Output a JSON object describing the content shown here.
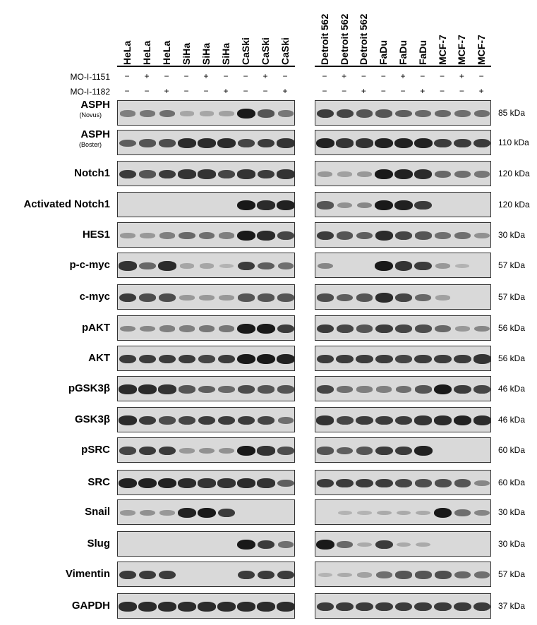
{
  "left_lanes": [
    "HeLa",
    "HeLa",
    "HeLa",
    "SiHa",
    "SiHa",
    "SiHa",
    "CaSki",
    "CaSki",
    "CaSki"
  ],
  "right_lanes": [
    "Detroit 562",
    "Detroit 562",
    "Detroit 562",
    "FaDu",
    "FaDu",
    "FaDu",
    "MCF-7",
    "MCF-7",
    "MCF-7"
  ],
  "treatments": [
    {
      "label": "MO-I-1151",
      "pattern": [
        "−",
        "+",
        "−",
        "−",
        "+",
        "−",
        "−",
        "+",
        "−"
      ]
    },
    {
      "label": "MO-I-1182",
      "pattern": [
        "−",
        "−",
        "+",
        "−",
        "−",
        "+",
        "−",
        "−",
        "+"
      ]
    }
  ],
  "rows": [
    {
      "label": "ASPH",
      "sub": "(Novus)",
      "kda": "85 kDa",
      "left": [
        0.35,
        0.4,
        0.45,
        0.12,
        0.12,
        0.15,
        0.95,
        0.6,
        0.4
      ],
      "right": [
        0.75,
        0.7,
        0.6,
        0.6,
        0.55,
        0.5,
        0.5,
        0.45,
        0.45
      ]
    },
    {
      "label": "ASPH",
      "sub": "(Boster)",
      "kda": "110 kDa",
      "left": [
        0.55,
        0.6,
        0.65,
        0.85,
        0.85,
        0.85,
        0.7,
        0.75,
        0.8
      ],
      "right": [
        0.9,
        0.8,
        0.8,
        0.9,
        0.9,
        0.9,
        0.75,
        0.75,
        0.75
      ]
    },
    {
      "label": "Notch1",
      "sub": "",
      "kda": "120 kDa",
      "left": [
        0.75,
        0.6,
        0.75,
        0.8,
        0.8,
        0.7,
        0.8,
        0.75,
        0.8
      ],
      "right": [
        0.2,
        0.15,
        0.2,
        0.95,
        0.9,
        0.85,
        0.5,
        0.45,
        0.4
      ]
    },
    {
      "label": "Activated Notch1",
      "sub": "",
      "kda": "120 kDa",
      "left": [
        0,
        0,
        0,
        0,
        0,
        0,
        0.95,
        0.85,
        0.9
      ],
      "right": [
        0.6,
        0.25,
        0.3,
        0.95,
        0.9,
        0.75,
        0,
        0,
        0
      ]
    },
    {
      "label": "HES1",
      "sub": "",
      "kda": "30 kDa",
      "left": [
        0.2,
        0.2,
        0.35,
        0.5,
        0.45,
        0.35,
        0.95,
        0.85,
        0.7
      ],
      "right": [
        0.75,
        0.6,
        0.55,
        0.85,
        0.7,
        0.6,
        0.45,
        0.45,
        0.25
      ]
    },
    {
      "label": "p-c-myc",
      "sub": "",
      "kda": "57 kDa",
      "left": [
        0.8,
        0.5,
        0.85,
        0.12,
        0.12,
        0.05,
        0.75,
        0.55,
        0.45
      ],
      "right": [
        0.3,
        0,
        0,
        0.95,
        0.8,
        0.75,
        0.2,
        0.05,
        0
      ]
    },
    {
      "label": "c-myc",
      "sub": "",
      "kda": "57 kDa",
      "left": [
        0.75,
        0.65,
        0.65,
        0.2,
        0.2,
        0.2,
        0.6,
        0.6,
        0.6
      ],
      "right": [
        0.65,
        0.55,
        0.6,
        0.85,
        0.7,
        0.5,
        0.15,
        0,
        0
      ]
    },
    {
      "label": "pAKT",
      "sub": "",
      "kda": "56 kDa",
      "left": [
        0.3,
        0.3,
        0.35,
        0.35,
        0.4,
        0.4,
        0.95,
        0.95,
        0.75
      ],
      "right": [
        0.75,
        0.7,
        0.6,
        0.75,
        0.7,
        0.65,
        0.5,
        0.2,
        0.3
      ]
    },
    {
      "label": "AKT",
      "sub": "",
      "kda": "56 kDa",
      "left": [
        0.75,
        0.75,
        0.75,
        0.75,
        0.7,
        0.75,
        0.95,
        0.95,
        0.9
      ],
      "right": [
        0.75,
        0.75,
        0.75,
        0.75,
        0.7,
        0.75,
        0.75,
        0.75,
        0.8
      ]
    },
    {
      "label": "pGSK3β",
      "sub": "",
      "kda": "46 kDa",
      "left": [
        0.85,
        0.85,
        0.8,
        0.6,
        0.55,
        0.5,
        0.65,
        0.6,
        0.6
      ],
      "right": [
        0.7,
        0.45,
        0.35,
        0.35,
        0.45,
        0.6,
        0.95,
        0.75,
        0.7
      ]
    },
    {
      "label": "GSK3β",
      "sub": "",
      "kda": "46 kDa",
      "left": [
        0.85,
        0.75,
        0.65,
        0.7,
        0.75,
        0.75,
        0.75,
        0.7,
        0.45
      ],
      "right": [
        0.8,
        0.7,
        0.75,
        0.75,
        0.75,
        0.8,
        0.85,
        0.9,
        0.85
      ]
    },
    {
      "label": "pSRC",
      "sub": "",
      "kda": "60 kDa",
      "left": [
        0.7,
        0.75,
        0.75,
        0.2,
        0.25,
        0.25,
        0.95,
        0.8,
        0.65
      ],
      "right": [
        0.6,
        0.55,
        0.6,
        0.75,
        0.75,
        0.9,
        0,
        0,
        0
      ]
    },
    {
      "label": "SRC",
      "sub": "",
      "kda": "60 kDa",
      "left": [
        0.9,
        0.9,
        0.9,
        0.85,
        0.8,
        0.8,
        0.85,
        0.8,
        0.55
      ],
      "right": [
        0.75,
        0.75,
        0.75,
        0.75,
        0.7,
        0.65,
        0.65,
        0.6,
        0.3
      ]
    },
    {
      "label": "Snail",
      "sub": "",
      "kda": "30 kDa",
      "left": [
        0.2,
        0.25,
        0.2,
        0.9,
        0.95,
        0.75,
        0,
        0,
        0
      ],
      "right": [
        0,
        0.05,
        0.05,
        0.1,
        0.1,
        0.1,
        0.95,
        0.45,
        0.3
      ]
    },
    {
      "label": "Slug",
      "sub": "",
      "kda": "30 kDa",
      "left": [
        0,
        0,
        0,
        0,
        0,
        0,
        0.95,
        0.75,
        0.45
      ],
      "right": [
        0.95,
        0.5,
        0.1,
        0.75,
        0.1,
        0.1,
        0,
        0,
        0
      ]
    },
    {
      "label": "Vimentin",
      "sub": "",
      "kda": "57 kDa",
      "left": [
        0.75,
        0.75,
        0.75,
        0,
        0,
        0,
        0.75,
        0.75,
        0.75
      ],
      "right": [
        0.05,
        0.1,
        0.15,
        0.45,
        0.6,
        0.6,
        0.65,
        0.5,
        0.45
      ]
    },
    {
      "label": "GAPDH",
      "sub": "",
      "kda": "37 kDa",
      "left": [
        0.85,
        0.85,
        0.85,
        0.85,
        0.85,
        0.85,
        0.85,
        0.85,
        0.85
      ],
      "right": [
        0.75,
        0.75,
        0.75,
        0.75,
        0.75,
        0.75,
        0.75,
        0.75,
        0.75
      ]
    }
  ]
}
